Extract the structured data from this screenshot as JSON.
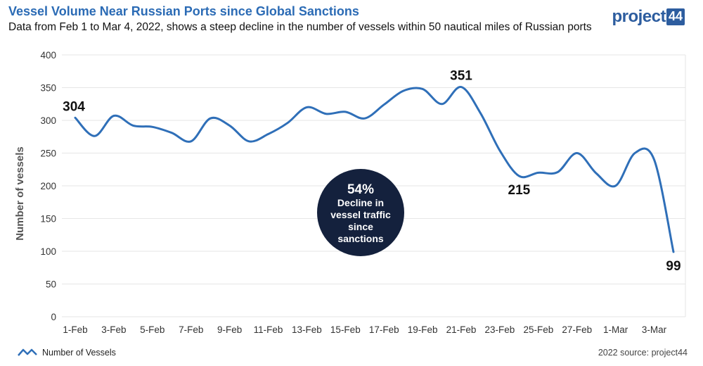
{
  "header": {
    "title": "Vessel Volume Near Russian Ports since Global Sanctions",
    "subtitle": "Data from Feb 1 to Mar 4, 2022, shows a steep decline in the number of vessels within 50 nautical miles of Russian ports"
  },
  "logo": {
    "text": "project",
    "number": "44"
  },
  "colors": {
    "line": "#2f6fb8",
    "callout_bg": "#14213d",
    "grid": "#e6e6e6"
  },
  "callout": {
    "big": "54%",
    "lines": [
      "Decline in",
      "vessel traffic",
      "since",
      "sanctions"
    ]
  },
  "footer": {
    "legend_label": "Number of Vessels",
    "source": "2022 source: project44"
  },
  "chart_data": {
    "type": "line",
    "ylabel": "Number of vessels",
    "ylim": [
      0,
      400
    ],
    "yticks": [
      0,
      50,
      100,
      150,
      200,
      250,
      300,
      350,
      400
    ],
    "grid": true,
    "legend": "bottom-left",
    "x": [
      "1-Feb",
      "2-Feb",
      "3-Feb",
      "4-Feb",
      "5-Feb",
      "6-Feb",
      "7-Feb",
      "8-Feb",
      "9-Feb",
      "10-Feb",
      "11-Feb",
      "12-Feb",
      "13-Feb",
      "14-Feb",
      "15-Feb",
      "16-Feb",
      "17-Feb",
      "18-Feb",
      "19-Feb",
      "20-Feb",
      "21-Feb",
      "22-Feb",
      "23-Feb",
      "24-Feb",
      "25-Feb",
      "26-Feb",
      "27-Feb",
      "28-Feb",
      "1-Mar",
      "2-Mar",
      "3-Mar",
      "4-Mar"
    ],
    "xtick_labels": [
      "1-Feb",
      "3-Feb",
      "5-Feb",
      "7-Feb",
      "9-Feb",
      "11-Feb",
      "13-Feb",
      "15-Feb",
      "17-Feb",
      "19-Feb",
      "21-Feb",
      "23-Feb",
      "25-Feb",
      "27-Feb",
      "1-Mar",
      "3-Mar"
    ],
    "series": [
      {
        "name": "Number of Vessels",
        "values": [
          304,
          276,
          307,
          292,
          290,
          281,
          268,
          303,
          292,
          268,
          279,
          296,
          320,
          310,
          313,
          303,
          324,
          345,
          348,
          325,
          351,
          311,
          254,
          215,
          220,
          221,
          250,
          219,
          200,
          250,
          240,
          99
        ]
      }
    ],
    "annotations": [
      {
        "x": "1-Feb",
        "label": "304"
      },
      {
        "x": "21-Feb",
        "label": "351"
      },
      {
        "x": "24-Feb",
        "label": "215"
      },
      {
        "x": "4-Mar",
        "label": "99"
      }
    ]
  }
}
